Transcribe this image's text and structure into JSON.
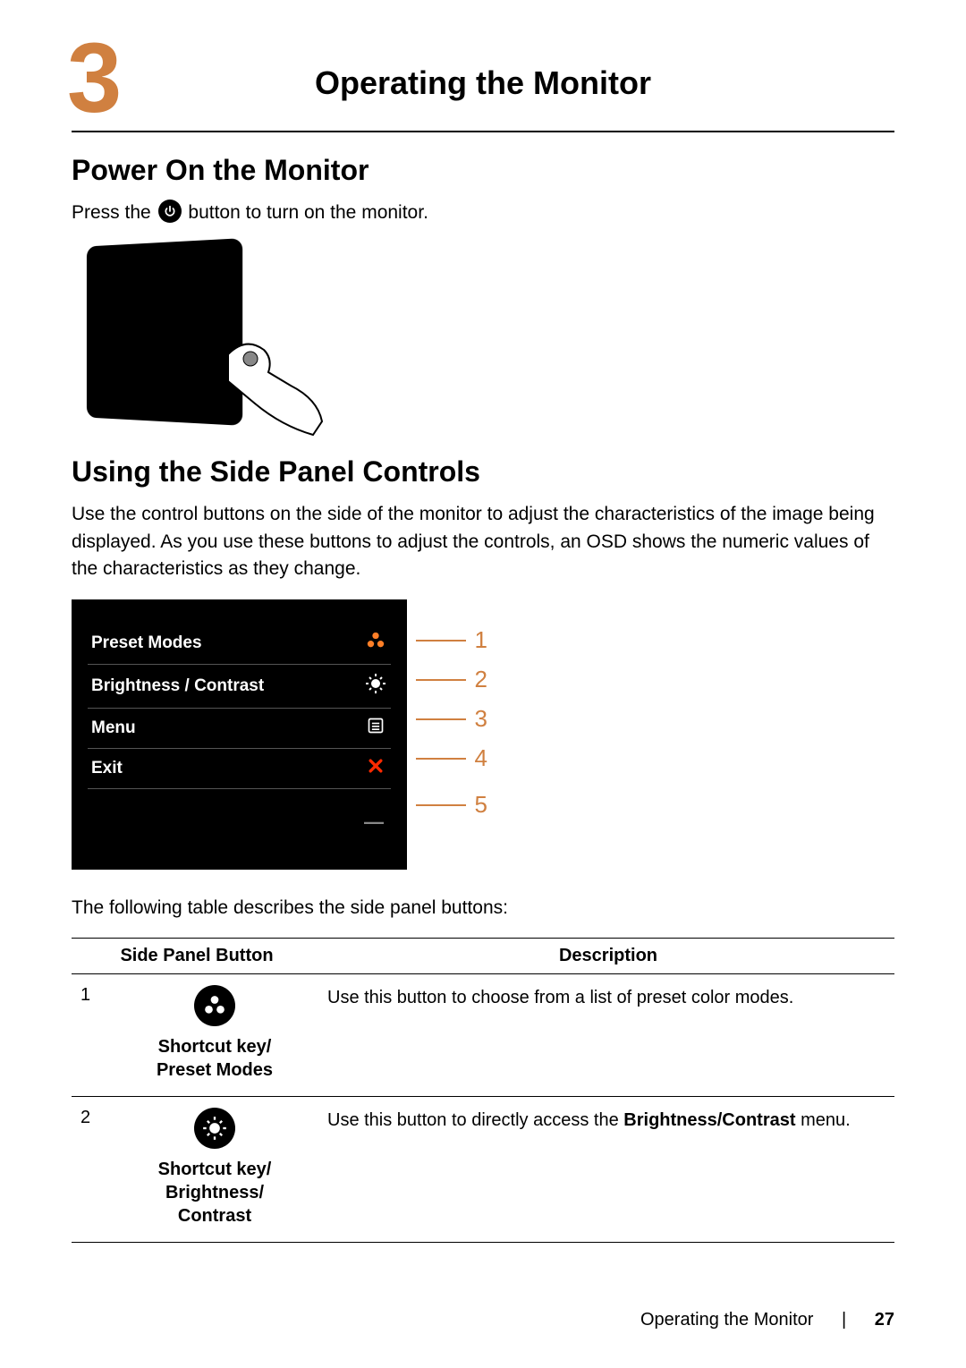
{
  "chapter": {
    "number": "3",
    "title": "Operating the Monitor"
  },
  "accent_color": "#d08040",
  "section1": {
    "heading": "Power On the Monitor",
    "text_before": "Press the ",
    "text_after": " button to turn on the monitor."
  },
  "section2": {
    "heading": "Using the Side Panel Controls",
    "body": "Use the control buttons on the side of the monitor to adjust the characteristics of the image being displayed. As you use these buttons to adjust the controls, an OSD shows the numeric values of the characteristics as they change.",
    "intro_table": "The following table describes the side panel buttons:"
  },
  "osd": {
    "rows": [
      {
        "label": "Preset Modes",
        "icon_color": "#ff7f27"
      },
      {
        "label": "Brightness / Contrast",
        "icon_color": "#ffffff"
      },
      {
        "label": "Menu",
        "icon_color": "#ffffff"
      },
      {
        "label": "Exit",
        "icon_color": "#ff2a00"
      }
    ],
    "callouts": [
      "1",
      "2",
      "3",
      "4",
      "5"
    ]
  },
  "table": {
    "headers": {
      "col1": "Side Panel Button",
      "col2": "Description"
    },
    "rows": [
      {
        "idx": "1",
        "caption": "Shortcut key/\nPreset Modes",
        "desc_plain": "Use this button to choose from a list of preset color modes.",
        "desc_bold": ""
      },
      {
        "idx": "2",
        "caption": "Shortcut key/\nBrightness/\nContrast",
        "desc_plain": "Use this button to directly access the ",
        "desc_bold": "Brightness/Contrast",
        "desc_after": " menu."
      }
    ]
  },
  "footer": {
    "title": "Operating the Monitor",
    "page": "27"
  }
}
